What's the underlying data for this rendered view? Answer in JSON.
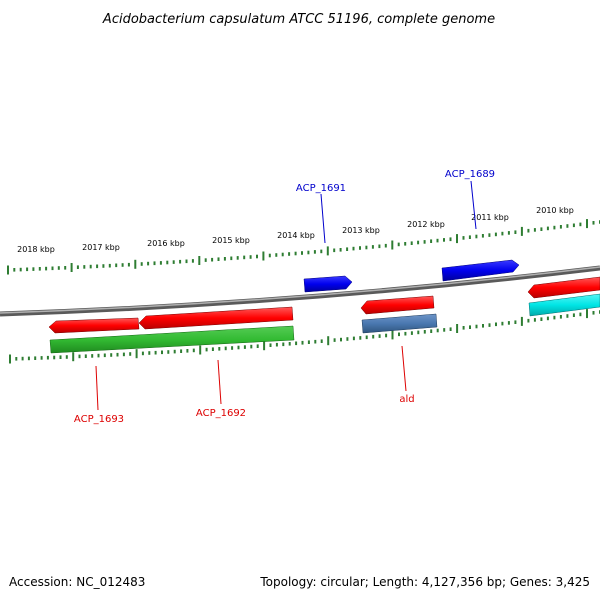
{
  "title": "Acidobacterium capsulatum ATCC 51196, complete genome",
  "footer": {
    "accession": "Accession: NC_012483",
    "summary": "Topology: circular; Length: 4,127,356 bp; Genes: 3,425"
  },
  "ruler": {
    "unit": "kbp",
    "tick_labels": [
      "2018 kbp",
      "2017 kbp",
      "2016 kbp",
      "2015 kbp",
      "2014 kbp",
      "2013 kbp",
      "2012 kbp",
      "2011 kbp",
      "2010 kbp"
    ]
  },
  "colors": {
    "backbone": "#808080",
    "ruler_ticks": "#2e7d32",
    "red": "#ff0000",
    "blue": "#0000ee",
    "green": "#33bb33",
    "steelblue": "#4a78b0",
    "cyan": "#00e5e5"
  },
  "genes": [
    {
      "name": "ACP_1693",
      "strand": "minus",
      "track": "inner-red",
      "color": "#ff0000",
      "label_color": "#dd0000"
    },
    {
      "name": "ACP_1692",
      "strand": "minus",
      "track": "inner-red",
      "color": "#ff0000",
      "label_color": "#dd0000"
    },
    {
      "name": "ACP_1691",
      "strand": "plus",
      "track": "outer-blue",
      "color": "#0000ee",
      "label_color": "#0000cc"
    },
    {
      "name": "ald",
      "strand": "minus",
      "track": "inner-red",
      "color": "#ff0000",
      "label_color": "#dd0000"
    },
    {
      "name": "ACP_1689",
      "strand": "plus",
      "track": "outer-blue",
      "color": "#0000ee",
      "label_color": "#0000cc"
    }
  ]
}
